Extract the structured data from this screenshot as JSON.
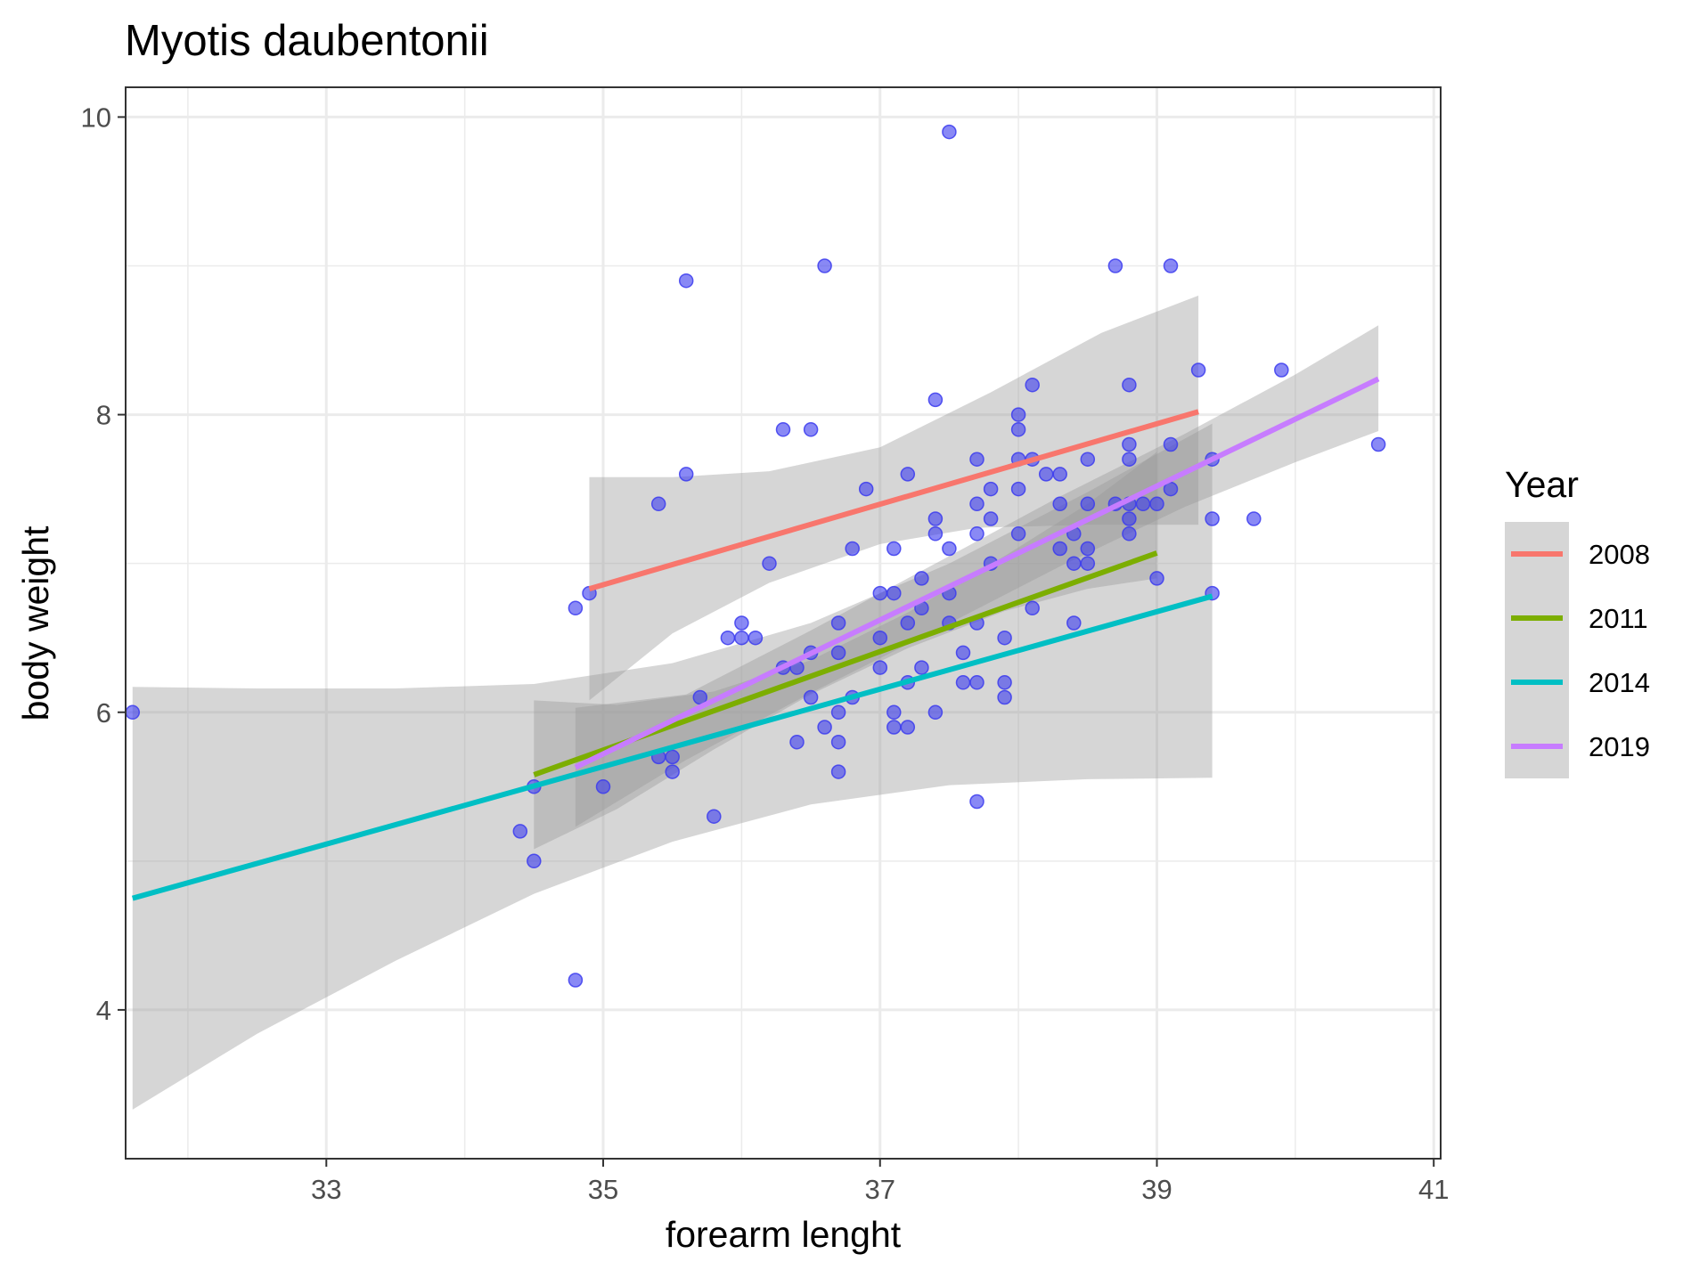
{
  "chart_data": {
    "type": "scatter",
    "title": "Myotis daubentonii",
    "xlabel": "forearm lenght",
    "ylabel": "body weight",
    "xlim": [
      31.55,
      41.05
    ],
    "ylim": [
      3.0,
      10.2
    ],
    "x_ticks": [
      33,
      35,
      37,
      39,
      41
    ],
    "y_ticks": [
      4,
      6,
      8,
      10
    ],
    "grid": true,
    "point_color": "#3B3BEF",
    "band_color": "#999999",
    "legend": {
      "title": "Year",
      "position": "right"
    },
    "points": [
      [
        31.6,
        6.0
      ],
      [
        34.4,
        5.2
      ],
      [
        34.5,
        5.0
      ],
      [
        34.5,
        5.5
      ],
      [
        34.8,
        6.7
      ],
      [
        34.8,
        4.2
      ],
      [
        34.9,
        6.8
      ],
      [
        35.0,
        5.5
      ],
      [
        35.4,
        7.4
      ],
      [
        35.4,
        5.7
      ],
      [
        35.5,
        5.7
      ],
      [
        35.5,
        5.6
      ],
      [
        35.6,
        8.9
      ],
      [
        35.6,
        7.6
      ],
      [
        35.7,
        6.1
      ],
      [
        35.8,
        5.3
      ],
      [
        35.9,
        6.5
      ],
      [
        36.0,
        6.5
      ],
      [
        36.0,
        6.6
      ],
      [
        36.1,
        6.5
      ],
      [
        36.2,
        7.0
      ],
      [
        36.3,
        7.9
      ],
      [
        36.3,
        6.3
      ],
      [
        36.4,
        5.8
      ],
      [
        36.4,
        6.3
      ],
      [
        36.5,
        7.9
      ],
      [
        36.5,
        6.4
      ],
      [
        36.5,
        6.1
      ],
      [
        36.6,
        9.0
      ],
      [
        36.6,
        5.9
      ],
      [
        36.7,
        6.6
      ],
      [
        36.7,
        6.4
      ],
      [
        36.7,
        6.0
      ],
      [
        36.7,
        5.8
      ],
      [
        36.7,
        5.6
      ],
      [
        36.8,
        7.1
      ],
      [
        36.8,
        6.1
      ],
      [
        36.9,
        7.5
      ],
      [
        37.0,
        6.8
      ],
      [
        37.0,
        6.5
      ],
      [
        37.0,
        6.3
      ],
      [
        37.1,
        7.1
      ],
      [
        37.1,
        6.8
      ],
      [
        37.1,
        6.0
      ],
      [
        37.1,
        5.9
      ],
      [
        37.2,
        7.6
      ],
      [
        37.2,
        6.6
      ],
      [
        37.2,
        6.2
      ],
      [
        37.2,
        5.9
      ],
      [
        37.3,
        6.9
      ],
      [
        37.3,
        6.7
      ],
      [
        37.3,
        6.3
      ],
      [
        37.4,
        8.1
      ],
      [
        37.4,
        7.3
      ],
      [
        37.4,
        7.2
      ],
      [
        37.4,
        6.0
      ],
      [
        37.5,
        9.9
      ],
      [
        37.5,
        7.1
      ],
      [
        37.5,
        6.8
      ],
      [
        37.5,
        6.6
      ],
      [
        37.6,
        6.4
      ],
      [
        37.6,
        6.2
      ],
      [
        37.7,
        7.7
      ],
      [
        37.7,
        7.4
      ],
      [
        37.7,
        7.2
      ],
      [
        37.7,
        6.6
      ],
      [
        37.7,
        6.2
      ],
      [
        37.7,
        5.4
      ],
      [
        37.8,
        7.5
      ],
      [
        37.8,
        7.3
      ],
      [
        37.8,
        7.0
      ],
      [
        37.9,
        6.5
      ],
      [
        37.9,
        6.2
      ],
      [
        37.9,
        6.1
      ],
      [
        38.0,
        8.0
      ],
      [
        38.0,
        7.9
      ],
      [
        38.0,
        7.7
      ],
      [
        38.0,
        7.5
      ],
      [
        38.0,
        7.2
      ],
      [
        38.1,
        8.2
      ],
      [
        38.1,
        7.7
      ],
      [
        38.1,
        6.7
      ],
      [
        38.2,
        7.6
      ],
      [
        38.3,
        7.6
      ],
      [
        38.3,
        7.4
      ],
      [
        38.3,
        7.1
      ],
      [
        38.4,
        7.2
      ],
      [
        38.4,
        7.0
      ],
      [
        38.4,
        6.6
      ],
      [
        38.5,
        7.7
      ],
      [
        38.5,
        7.4
      ],
      [
        38.5,
        7.1
      ],
      [
        38.5,
        7.0
      ],
      [
        38.7,
        9.0
      ],
      [
        38.7,
        7.4
      ],
      [
        38.8,
        8.2
      ],
      [
        38.8,
        7.8
      ],
      [
        38.8,
        7.7
      ],
      [
        38.8,
        7.4
      ],
      [
        38.8,
        7.3
      ],
      [
        38.8,
        7.2
      ],
      [
        38.9,
        7.4
      ],
      [
        39.0,
        7.4
      ],
      [
        39.0,
        6.9
      ],
      [
        39.1,
        9.0
      ],
      [
        39.1,
        7.8
      ],
      [
        39.1,
        7.5
      ],
      [
        39.3,
        8.3
      ],
      [
        39.4,
        7.7
      ],
      [
        39.4,
        7.3
      ],
      [
        39.4,
        6.8
      ],
      [
        39.7,
        7.3
      ],
      [
        39.9,
        8.3
      ],
      [
        40.6,
        7.8
      ]
    ],
    "series": [
      {
        "name": "2008",
        "color": "#F8766D",
        "x0": 34.9,
        "x1": 39.3,
        "y0": 6.83,
        "y1": 8.02,
        "band_lower": [
          [
            34.9,
            6.08
          ],
          [
            35.5,
            6.53
          ],
          [
            36.2,
            6.87
          ],
          [
            37.0,
            7.13
          ],
          [
            37.7,
            7.24
          ],
          [
            38.5,
            7.26
          ],
          [
            39.3,
            7.26
          ]
        ],
        "band_upper": [
          [
            39.3,
            8.8
          ],
          [
            38.6,
            8.55
          ],
          [
            37.8,
            8.15
          ],
          [
            37.0,
            7.78
          ],
          [
            36.2,
            7.62
          ],
          [
            35.5,
            7.58
          ],
          [
            34.9,
            7.58
          ]
        ]
      },
      {
        "name": "2011",
        "color": "#7CAE00",
        "x0": 34.5,
        "x1": 39.0,
        "y0": 5.58,
        "y1": 7.07,
        "band_lower": [
          [
            34.5,
            5.08
          ],
          [
            35.1,
            5.35
          ],
          [
            35.8,
            5.75
          ],
          [
            36.5,
            6.12
          ],
          [
            37.2,
            6.43
          ],
          [
            37.9,
            6.68
          ],
          [
            38.5,
            6.83
          ],
          [
            39.0,
            6.9
          ]
        ],
        "band_upper": [
          [
            39.0,
            7.75
          ],
          [
            38.5,
            7.4
          ],
          [
            37.9,
            7.05
          ],
          [
            37.2,
            6.67
          ],
          [
            36.5,
            6.35
          ],
          [
            35.8,
            6.14
          ],
          [
            35.1,
            6.05
          ],
          [
            34.5,
            6.08
          ]
        ]
      },
      {
        "name": "2014",
        "color": "#00BFC4",
        "x0": 31.6,
        "x1": 39.4,
        "y0": 4.75,
        "y1": 6.78,
        "band_lower": [
          [
            31.6,
            3.33
          ],
          [
            32.5,
            3.84
          ],
          [
            33.5,
            4.33
          ],
          [
            34.5,
            4.78
          ],
          [
            35.5,
            5.13
          ],
          [
            36.5,
            5.38
          ],
          [
            37.5,
            5.51
          ],
          [
            38.5,
            5.55
          ],
          [
            39.4,
            5.56
          ]
        ],
        "band_upper": [
          [
            39.4,
            7.94
          ],
          [
            38.5,
            7.48
          ],
          [
            37.5,
            7.0
          ],
          [
            36.5,
            6.6
          ],
          [
            35.5,
            6.33
          ],
          [
            34.5,
            6.19
          ],
          [
            33.5,
            6.16
          ],
          [
            32.5,
            6.16
          ],
          [
            31.6,
            6.17
          ]
        ]
      },
      {
        "name": "2019",
        "color": "#C77CFF",
        "x0": 34.8,
        "x1": 40.6,
        "y0": 5.63,
        "y1": 8.24,
        "band_lower": [
          [
            34.8,
            5.23
          ],
          [
            35.6,
            5.68
          ],
          [
            36.5,
            6.13
          ],
          [
            37.4,
            6.55
          ],
          [
            38.3,
            6.98
          ],
          [
            39.2,
            7.38
          ],
          [
            40.0,
            7.68
          ],
          [
            40.6,
            7.89
          ]
        ],
        "band_upper": [
          [
            40.6,
            8.6
          ],
          [
            40.0,
            8.27
          ],
          [
            39.2,
            7.87
          ],
          [
            38.3,
            7.45
          ],
          [
            37.4,
            7.0
          ],
          [
            36.5,
            6.55
          ],
          [
            35.6,
            6.12
          ],
          [
            34.8,
            6.03
          ]
        ]
      }
    ]
  }
}
